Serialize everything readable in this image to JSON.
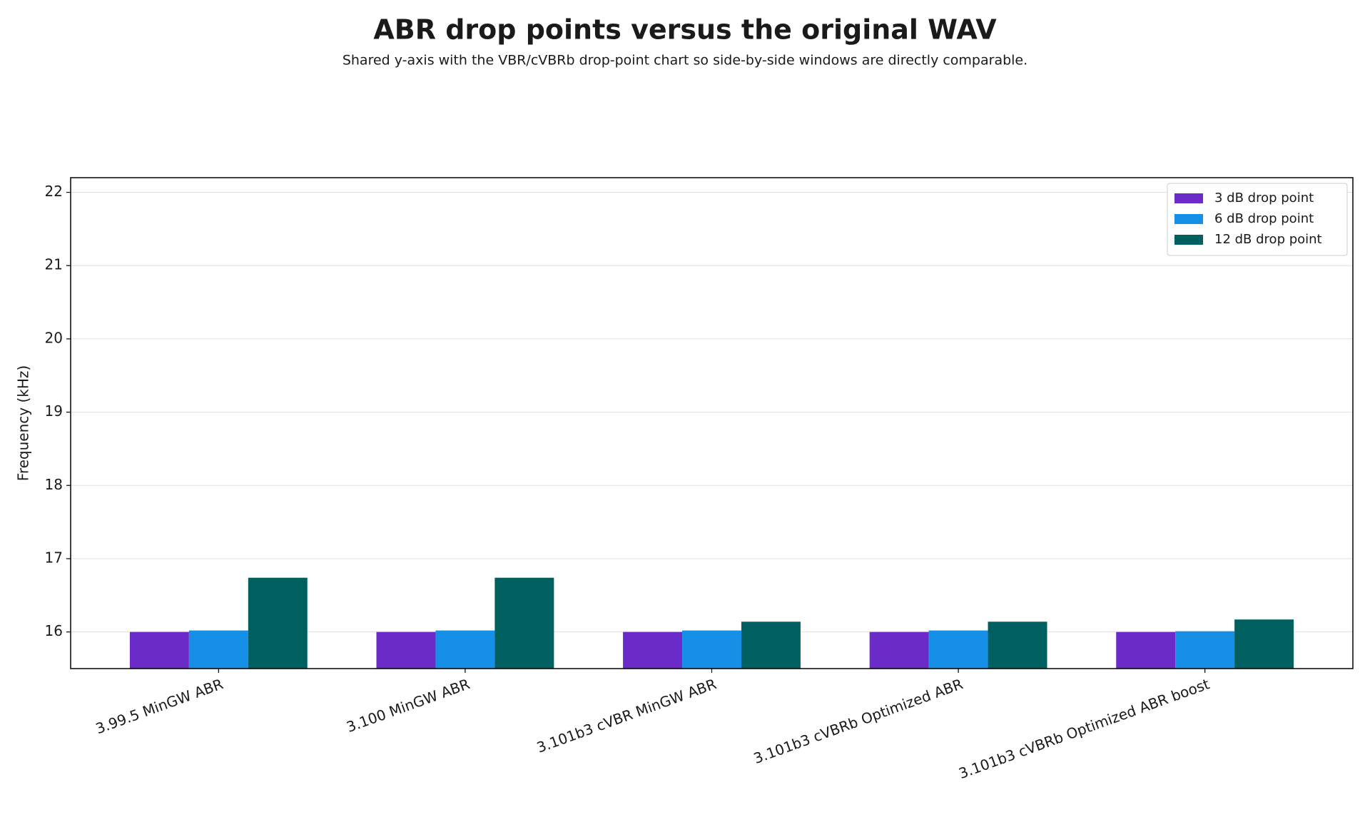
{
  "chart_data": {
    "type": "bar",
    "title": "ABR drop points versus the original WAV",
    "subtitle": "Shared y-axis with the VBR/cVBRb drop-point chart so side-by-side windows are directly comparable.",
    "y_label": "Frequency (kHz)",
    "categories": [
      "3.99.5 MinGW ABR",
      "3.100 MinGW ABR",
      "3.101b3 cVBR MinGW ABR",
      "3.101b3 cVBRb Optimized ABR",
      "3.101b3 cVBRb Optimized ABR boost"
    ],
    "series": [
      {
        "name": "3 dB drop point",
        "color": "#6a2bc8",
        "values": [
          16.0,
          16.0,
          16.0,
          16.0,
          16.0
        ]
      },
      {
        "name": "6 dB drop point",
        "color": "#1590e6",
        "values": [
          16.02,
          16.02,
          16.02,
          16.02,
          16.01
        ]
      },
      {
        "name": "12 dB drop point",
        "color": "#005f5f",
        "values": [
          16.74,
          16.74,
          16.14,
          16.14,
          16.17
        ]
      }
    ],
    "ylim": [
      15.5,
      22.2
    ],
    "yticks": [
      16,
      17,
      18,
      19,
      20,
      21,
      22
    ],
    "grid": true,
    "legend": "upper right"
  }
}
